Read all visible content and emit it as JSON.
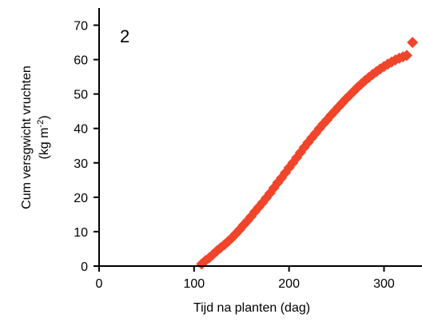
{
  "chart_data": {
    "type": "scatter",
    "panel_label": "2",
    "xlabel": "Tijd na planten (dag)",
    "ylabel_line1": "Cum versgwicht vruchten",
    "ylabel_line2_prefix": "(kg m",
    "ylabel_line2_sup": "-2",
    "ylabel_line2_suffix": ")",
    "xlim": [
      0,
      340
    ],
    "ylim": [
      0,
      75
    ],
    "xticks": [
      0,
      100,
      200,
      300
    ],
    "yticks": [
      0,
      10,
      20,
      30,
      40,
      50,
      60,
      70
    ],
    "grid": false,
    "colors": {
      "line": "#2b2ba6",
      "marker": "#f0452a",
      "axis": "#000000"
    },
    "series": [
      {
        "kind": "line",
        "x": [
          0,
          105,
          110,
          115,
          120,
          125,
          130,
          135,
          140,
          145,
          150,
          155,
          160,
          165,
          170,
          175,
          180,
          185,
          190,
          195,
          200,
          205,
          210,
          215,
          220,
          225,
          230,
          235,
          240,
          245,
          250,
          255,
          260,
          265,
          270,
          275,
          280,
          285,
          290,
          295,
          300,
          305,
          310,
          315,
          320,
          325
        ],
        "y": [
          0,
          0,
          1.3,
          2.6,
          3.9,
          5.2,
          6.3,
          7.6,
          8.9,
          10.3,
          11.8,
          13.3,
          14.8,
          16.4,
          18.1,
          19.7,
          21.4,
          23.2,
          25.1,
          26.9,
          28.7,
          30.6,
          32.6,
          34.4,
          36.1,
          37.8,
          39.4,
          41.0,
          42.5,
          44.0,
          45.4,
          46.8,
          48.2,
          49.6,
          50.9,
          52.2,
          53.4,
          54.6,
          55.8,
          56.9,
          58.0,
          58.9,
          59.7,
          60.4,
          61.0,
          61.5
        ]
      },
      {
        "kind": "markers",
        "x": [
          108,
          112,
          116,
          120,
          124,
          128,
          132,
          136,
          140,
          144,
          148,
          152,
          156,
          160,
          164,
          168,
          172,
          176,
          180,
          184,
          188,
          192,
          196,
          200,
          204,
          208,
          212,
          216,
          220,
          224,
          228,
          232,
          236,
          240,
          244,
          248,
          252,
          256,
          260,
          264,
          268,
          272,
          276,
          280,
          284,
          288,
          292,
          296,
          300,
          304,
          308,
          312,
          316,
          320,
          324,
          330
        ],
        "y": [
          0.6,
          1.6,
          2.4,
          3.4,
          4.4,
          5.3,
          6.2,
          7.2,
          8.2,
          9.4,
          10.6,
          11.9,
          13.1,
          14.4,
          15.8,
          17.1,
          18.4,
          19.8,
          21.2,
          22.7,
          24.2,
          25.6,
          27.1,
          28.6,
          30.0,
          31.5,
          33.0,
          34.5,
          35.9,
          37.3,
          38.6,
          40.0,
          41.3,
          42.5,
          43.8,
          45.0,
          46.2,
          47.4,
          48.6,
          49.7,
          50.8,
          51.9,
          52.9,
          53.9,
          54.8,
          55.7,
          56.5,
          57.3,
          58.0,
          58.7,
          59.3,
          59.9,
          60.4,
          60.8,
          61.2,
          65.0
        ]
      }
    ]
  }
}
